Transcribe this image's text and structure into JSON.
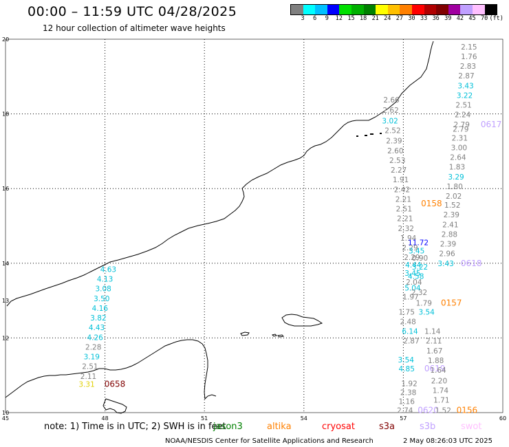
{
  "title": "00:00 – 11:59 UTC 04/28/2025",
  "subtitle": "12 hour collection of altimeter wave heights",
  "legend": {
    "colors": [
      "#808080",
      "#00ffff",
      "#00c0ff",
      "#0000ff",
      "#00e000",
      "#00b000",
      "#008000",
      "#ffff00",
      "#ffc000",
      "#ff8000",
      "#ff0000",
      "#b00000",
      "#800000",
      "#a000a0",
      "#c0a0ff",
      "#ffc0ff",
      "#000000"
    ],
    "labels": [
      "3",
      "6",
      "9",
      "12",
      "15",
      "18",
      "21",
      "24",
      "27",
      "30",
      "33",
      "36",
      "39",
      "42",
      "45",
      "70",
      "(ft)"
    ]
  },
  "map": {
    "lon_ticks": [
      "45",
      "48",
      "51",
      "54",
      "57",
      "60"
    ],
    "lat_ticks": [
      "20",
      "18",
      "16",
      "14",
      "12",
      "10"
    ],
    "lat_mid_tick": "13",
    "satellite_colors": {
      "jason3": "#008000",
      "altika": "#ff8000",
      "cryosat": "#ff0000",
      "s3a": "#800000",
      "s3b": "#c0a0ff",
      "swot": "#ffc0ff",
      "default": "#808080",
      "cyan": "#00c0d8",
      "blue": "#0000ff",
      "yellow": "#e0d000"
    },
    "observations": [
      {
        "text": "2.15",
        "lon": 58.98,
        "lat": 19.8,
        "c": "default"
      },
      {
        "text": "1.76",
        "lon": 58.98,
        "lat": 19.54,
        "c": "default"
      },
      {
        "text": "2.83",
        "lon": 58.95,
        "lat": 19.28,
        "c": "default"
      },
      {
        "text": "2.87",
        "lon": 58.9,
        "lat": 19.02,
        "c": "default"
      },
      {
        "text": "3.43",
        "lon": 58.88,
        "lat": 18.76,
        "c": "cyan"
      },
      {
        "text": "3.22",
        "lon": 58.85,
        "lat": 18.5,
        "c": "cyan"
      },
      {
        "text": "2.51",
        "lon": 58.82,
        "lat": 18.24,
        "c": "default"
      },
      {
        "text": "2.24",
        "lon": 58.79,
        "lat": 17.98,
        "c": "default"
      },
      {
        "text": "2.79",
        "lon": 58.76,
        "lat": 17.72,
        "c": "default"
      },
      {
        "text": "0617",
        "lon": 59.65,
        "lat": 17.72,
        "c": "s3b"
      },
      {
        "text": "2.79",
        "lon": 58.73,
        "lat": 17.6,
        "c": "default"
      },
      {
        "text": "2.31",
        "lon": 58.7,
        "lat": 17.36,
        "c": "default"
      },
      {
        "text": "3.00",
        "lon": 58.68,
        "lat": 17.1,
        "c": "default"
      },
      {
        "text": "2.64",
        "lon": 58.65,
        "lat": 16.84,
        "c": "default"
      },
      {
        "text": "1.83",
        "lon": 58.62,
        "lat": 16.58,
        "c": "default"
      },
      {
        "text": "3.29",
        "lon": 58.59,
        "lat": 16.32,
        "c": "cyan"
      },
      {
        "text": "1.80",
        "lon": 58.55,
        "lat": 16.06,
        "c": "default"
      },
      {
        "text": "2.02",
        "lon": 58.52,
        "lat": 15.8,
        "c": "default"
      },
      {
        "text": "1.52",
        "lon": 58.48,
        "lat": 15.56,
        "c": "default"
      },
      {
        "text": "0158",
        "lon": 57.85,
        "lat": 15.6,
        "c": "altika"
      },
      {
        "text": "2.39",
        "lon": 58.45,
        "lat": 15.3,
        "c": "default"
      },
      {
        "text": "2.41",
        "lon": 58.42,
        "lat": 15.04,
        "c": "default"
      },
      {
        "text": "2.88",
        "lon": 58.39,
        "lat": 14.78,
        "c": "default"
      },
      {
        "text": "2.39",
        "lon": 58.35,
        "lat": 14.52,
        "c": "default"
      },
      {
        "text": "2.96",
        "lon": 58.32,
        "lat": 14.26,
        "c": "default"
      },
      {
        "text": "3.43",
        "lon": 58.28,
        "lat": 14.0,
        "c": "cyan"
      },
      {
        "text": "0618",
        "lon": 59.05,
        "lat": 14.0,
        "c": "s3b"
      },
      {
        "text": "2.66",
        "lon": 56.64,
        "lat": 18.38,
        "c": "default"
      },
      {
        "text": "2.62",
        "lon": 56.62,
        "lat": 18.1,
        "c": "default"
      },
      {
        "text": "3.02",
        "lon": 56.6,
        "lat": 17.82,
        "c": "cyan"
      },
      {
        "text": "2.52",
        "lon": 56.68,
        "lat": 17.56,
        "c": "default"
      },
      {
        "text": "2.39",
        "lon": 56.72,
        "lat": 17.28,
        "c": "default"
      },
      {
        "text": "2.60",
        "lon": 56.76,
        "lat": 17.02,
        "c": "default"
      },
      {
        "text": "2.53",
        "lon": 56.82,
        "lat": 16.76,
        "c": "default"
      },
      {
        "text": "2.27",
        "lon": 56.86,
        "lat": 16.5,
        "c": "default"
      },
      {
        "text": "1.91",
        "lon": 56.92,
        "lat": 16.24,
        "c": "default"
      },
      {
        "text": "2.42",
        "lon": 56.96,
        "lat": 15.98,
        "c": "default"
      },
      {
        "text": "2.21",
        "lon": 57.0,
        "lat": 15.72,
        "c": "default"
      },
      {
        "text": "2.51",
        "lon": 57.02,
        "lat": 15.46,
        "c": "default"
      },
      {
        "text": "2.21",
        "lon": 57.05,
        "lat": 15.2,
        "c": "default"
      },
      {
        "text": "2.32",
        "lon": 57.08,
        "lat": 14.94,
        "c": "default"
      },
      {
        "text": "1.94",
        "lon": 57.15,
        "lat": 14.68,
        "c": "default"
      },
      {
        "text": "11.72",
        "lon": 57.45,
        "lat": 14.56,
        "c": "blue"
      },
      {
        "text": "2.29",
        "lon": 57.2,
        "lat": 14.42,
        "c": "default"
      },
      {
        "text": "3.45",
        "lon": 57.4,
        "lat": 14.34,
        "c": "cyan"
      },
      {
        "text": "2.29",
        "lon": 57.26,
        "lat": 14.16,
        "c": "default"
      },
      {
        "text": "0.90",
        "lon": 57.5,
        "lat": 14.14,
        "c": "default"
      },
      {
        "text": "4.44",
        "lon": 57.3,
        "lat": 13.96,
        "c": "cyan"
      },
      {
        "text": "3.22",
        "lon": 57.5,
        "lat": 13.9,
        "c": "cyan"
      },
      {
        "text": "3.45",
        "lon": 57.28,
        "lat": 13.74,
        "c": "cyan"
      },
      {
        "text": "4.58",
        "lon": 57.38,
        "lat": 13.66,
        "c": "cyan"
      },
      {
        "text": "2.04",
        "lon": 57.32,
        "lat": 13.5,
        "c": "default"
      },
      {
        "text": "5.04",
        "lon": 57.28,
        "lat": 13.34,
        "c": "cyan"
      },
      {
        "text": "2.32",
        "lon": 57.48,
        "lat": 13.22,
        "c": "default"
      },
      {
        "text": "1.97",
        "lon": 57.22,
        "lat": 13.1,
        "c": "default"
      },
      {
        "text": "1.79",
        "lon": 57.62,
        "lat": 12.94,
        "c": "default"
      },
      {
        "text": "0157",
        "lon": 58.45,
        "lat": 12.94,
        "c": "altika"
      },
      {
        "text": "1.75",
        "lon": 57.1,
        "lat": 12.7,
        "c": "default"
      },
      {
        "text": "3.54",
        "lon": 57.7,
        "lat": 12.7,
        "c": "cyan"
      },
      {
        "text": "2.48",
        "lon": 57.14,
        "lat": 12.44,
        "c": "default"
      },
      {
        "text": "6.14",
        "lon": 57.2,
        "lat": 12.18,
        "c": "cyan"
      },
      {
        "text": "1.14",
        "lon": 57.88,
        "lat": 12.18,
        "c": "default"
      },
      {
        "text": "2.87",
        "lon": 57.24,
        "lat": 11.92,
        "c": "default"
      },
      {
        "text": "2.11",
        "lon": 57.92,
        "lat": 11.92,
        "c": "default"
      },
      {
        "text": "1.67",
        "lon": 57.94,
        "lat": 11.66,
        "c": "default"
      },
      {
        "text": "3.54",
        "lon": 57.08,
        "lat": 11.42,
        "c": "cyan"
      },
      {
        "text": "1.88",
        "lon": 57.98,
        "lat": 11.4,
        "c": "default"
      },
      {
        "text": "4.85",
        "lon": 57.1,
        "lat": 11.18,
        "c": "cyan"
      },
      {
        "text": "0619",
        "lon": 57.95,
        "lat": 11.18,
        "c": "s3b"
      },
      {
        "text": "1.64",
        "lon": 58.05,
        "lat": 11.14,
        "c": "default"
      },
      {
        "text": "1.92",
        "lon": 57.18,
        "lat": 10.78,
        "c": "default"
      },
      {
        "text": "2.20",
        "lon": 58.08,
        "lat": 10.86,
        "c": "default"
      },
      {
        "text": "2.38",
        "lon": 57.15,
        "lat": 10.54,
        "c": "default"
      },
      {
        "text": "1.74",
        "lon": 58.12,
        "lat": 10.6,
        "c": "default"
      },
      {
        "text": "1.16",
        "lon": 57.1,
        "lat": 10.3,
        "c": "default"
      },
      {
        "text": "1.71",
        "lon": 58.15,
        "lat": 10.34,
        "c": "default"
      },
      {
        "text": "2.74",
        "lon": 57.05,
        "lat": 10.06,
        "c": "default"
      },
      {
        "text": "0620",
        "lon": 57.75,
        "lat": 10.06,
        "c": "s3b"
      },
      {
        "text": "1.52",
        "lon": 58.2,
        "lat": 10.06,
        "c": "default"
      },
      {
        "text": "0156",
        "lon": 58.92,
        "lat": 10.06,
        "c": "altika"
      },
      {
        "text": "4.63",
        "lon": 48.1,
        "lat": 13.84,
        "c": "cyan"
      },
      {
        "text": "4.13",
        "lon": 48.0,
        "lat": 13.58,
        "c": "cyan"
      },
      {
        "text": "3.08",
        "lon": 47.95,
        "lat": 13.32,
        "c": "cyan"
      },
      {
        "text": "3.50",
        "lon": 47.9,
        "lat": 13.06,
        "c": "cyan"
      },
      {
        "text": "4.16",
        "lon": 47.85,
        "lat": 12.8,
        "c": "cyan"
      },
      {
        "text": "3.82",
        "lon": 47.8,
        "lat": 12.54,
        "c": "cyan"
      },
      {
        "text": "4.43",
        "lon": 47.75,
        "lat": 12.28,
        "c": "cyan"
      },
      {
        "text": "4.26",
        "lon": 47.7,
        "lat": 12.02,
        "c": "cyan"
      },
      {
        "text": "2.28",
        "lon": 47.65,
        "lat": 11.76,
        "c": "default"
      },
      {
        "text": "3.19",
        "lon": 47.6,
        "lat": 11.5,
        "c": "cyan"
      },
      {
        "text": "2.51",
        "lon": 47.55,
        "lat": 11.24,
        "c": "default"
      },
      {
        "text": "2.11",
        "lon": 47.5,
        "lat": 10.98,
        "c": "default"
      },
      {
        "text": "3.31",
        "lon": 47.45,
        "lat": 10.76,
        "c": "yellow"
      },
      {
        "text": "0658",
        "lon": 48.3,
        "lat": 10.76,
        "c": "s3a"
      }
    ]
  },
  "note_text": "note:  1) Time is in UTC; 2) SWH is in feet",
  "satellites": [
    {
      "key": "jason3",
      "label": "jason3"
    },
    {
      "key": "altika",
      "label": "altika"
    },
    {
      "key": "cryosat",
      "label": "cryosat"
    },
    {
      "key": "s3a",
      "label": "s3a"
    },
    {
      "key": "s3b",
      "label": "s3b"
    },
    {
      "key": "swot",
      "label": "swot"
    }
  ],
  "footer": "NOAA/NESDIS Center for Satellite Applications and Research",
  "footer_date": "2 May 08:26:03 UTC 2025"
}
